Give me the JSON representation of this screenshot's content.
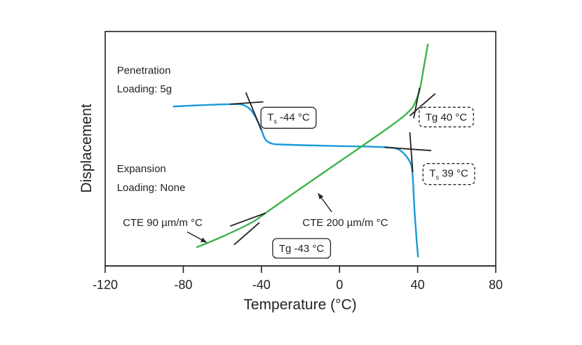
{
  "chart_data": {
    "type": "line",
    "title": "",
    "xlabel": "Temperature (°C)",
    "ylabel": "Displacement",
    "xlim": [
      -120,
      80
    ],
    "ylim": [
      0,
      100
    ],
    "xticks": [
      -120,
      -80,
      -40,
      0,
      40,
      80
    ],
    "xtick_labels": [
      "-120",
      "-80",
      "-40",
      "0",
      "40",
      "80"
    ],
    "grid": false,
    "series": [
      {
        "color": "#1a9ad7",
        "points": [
          [
            -85,
            68.0
          ],
          [
            -70,
            68.6
          ],
          [
            -56,
            69.0
          ],
          [
            -50,
            68.8
          ],
          [
            -46,
            67.0
          ],
          [
            -43,
            63.5
          ],
          [
            -40,
            58.0
          ],
          [
            -38,
            54.0
          ],
          [
            -35,
            52.3
          ],
          [
            -30,
            51.8
          ],
          [
            -10,
            51.3
          ],
          [
            10,
            51.0
          ],
          [
            24,
            50.6
          ],
          [
            30,
            49.8
          ],
          [
            34,
            47.0
          ],
          [
            36.5,
            43.5
          ],
          [
            37.5,
            38.0
          ],
          [
            38.3,
            25.0
          ],
          [
            39.3,
            13.0
          ],
          [
            40.2,
            4.0
          ]
        ]
      },
      {
        "color": "#3cb44b",
        "points": [
          [
            -73,
            8.0
          ],
          [
            -60,
            12.5
          ],
          [
            -45,
            18.5
          ],
          [
            -38,
            22.5
          ],
          [
            -20,
            33.0
          ],
          [
            0,
            44.5
          ],
          [
            20,
            56.0
          ],
          [
            30,
            62.0
          ],
          [
            35,
            65.5
          ],
          [
            38,
            68.5
          ],
          [
            41,
            75.0
          ],
          [
            43,
            84.0
          ],
          [
            44.5,
            91.0
          ],
          [
            45.2,
            94.5
          ]
        ]
      }
    ],
    "tangent_lines": [
      {
        "color": "#222222",
        "points": [
          [
            -56,
            69.0
          ],
          [
            -39,
            70.0
          ]
        ]
      },
      {
        "color": "#222222",
        "points": [
          [
            -48,
            74.0
          ],
          [
            -40,
            58.0
          ]
        ]
      },
      {
        "color": "#222222",
        "points": [
          [
            23,
            50.6
          ],
          [
            47,
            49.2
          ]
        ]
      },
      {
        "color": "#222222",
        "points": [
          [
            36,
            57.0
          ],
          [
            37.5,
            40.0
          ]
        ]
      },
      {
        "color": "#222222",
        "points": [
          [
            -54,
            9.0
          ],
          [
            -41,
            18.5
          ]
        ]
      },
      {
        "color": "#222222",
        "points": [
          [
            -56,
            17.0
          ],
          [
            -38,
            22.5
          ]
        ]
      },
      {
        "color": "#222222",
        "points": [
          [
            36,
            64.0
          ],
          [
            49,
            73.5
          ]
        ]
      },
      {
        "color": "#222222",
        "points": [
          [
            38,
            63.0
          ],
          [
            41,
            76.0
          ]
        ]
      }
    ],
    "annotations": [
      {
        "text": "Penetration",
        "x": -114,
        "y": 82
      },
      {
        "text": "Loading: 5g",
        "x": -114,
        "y": 74
      },
      {
        "text": "Expansion",
        "x": -114,
        "y": 40
      },
      {
        "text": "Loading: None",
        "x": -114,
        "y": 32
      },
      {
        "text": "CTE 90 µm/m °C",
        "x": -111,
        "y": 17,
        "arrow_from": [
          -78,
          14.5
        ],
        "arrow_to": [
          -68,
          10.0
        ]
      },
      {
        "text": "CTE 200 µm/m °C",
        "x": -19,
        "y": 17,
        "arrow_from": [
          -4,
          23.0
        ],
        "arrow_to": [
          -11,
          31.0
        ]
      }
    ],
    "boxed_labels": [
      {
        "main": "T",
        "sub": "s",
        "value": " -44 °C",
        "x": -37,
        "y": 62,
        "dashed": false
      },
      {
        "main": "Tg",
        "sub": "",
        "value": " 40 °C",
        "x": 44,
        "y": 62,
        "dashed": true
      },
      {
        "main": "T",
        "sub": "s",
        "value": " 39 °C",
        "x": 46,
        "y": 38,
        "dashed": true
      },
      {
        "main": "Tg",
        "sub": "",
        "value": " -43 °C",
        "x": -31,
        "y": 6,
        "dashed": false
      }
    ]
  }
}
